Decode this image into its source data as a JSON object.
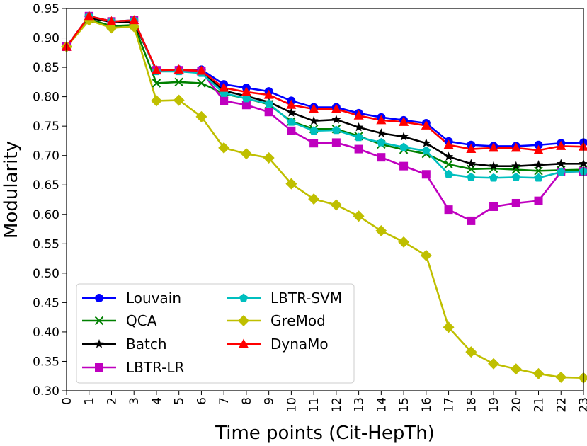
{
  "chart_data": {
    "type": "line",
    "title": "",
    "xlabel": "Time points (Cit-HepTh)",
    "ylabel": "Modularity",
    "xlim": [
      0,
      23
    ],
    "ylim": [
      0.3,
      0.95
    ],
    "x": [
      0,
      1,
      2,
      3,
      4,
      5,
      6,
      7,
      8,
      9,
      10,
      11,
      12,
      13,
      14,
      15,
      16,
      17,
      18,
      19,
      20,
      21,
      22,
      23
    ],
    "xticks": [
      "0",
      "1",
      "2",
      "3",
      "4",
      "5",
      "6",
      "7",
      "8",
      "9",
      "10",
      "11",
      "12",
      "13",
      "14",
      "15",
      "16",
      "17",
      "18",
      "19",
      "20",
      "21",
      "22",
      "23"
    ],
    "yticks": [
      "0.30",
      "0.35",
      "0.40",
      "0.45",
      "0.50",
      "0.55",
      "0.60",
      "0.65",
      "0.70",
      "0.75",
      "0.80",
      "0.85",
      "0.90",
      "0.95"
    ],
    "legend_position": "lower-left",
    "series": [
      {
        "name": "Louvain",
        "color": "#0000ff",
        "marker": "circle",
        "values": [
          0.885,
          0.937,
          0.928,
          0.93,
          0.845,
          0.846,
          0.846,
          0.821,
          0.815,
          0.809,
          0.793,
          0.782,
          0.782,
          0.772,
          0.765,
          0.76,
          0.755,
          0.724,
          0.718,
          0.716,
          0.716,
          0.718,
          0.721,
          0.722
        ]
      },
      {
        "name": "QCA",
        "color": "#008000",
        "marker": "x",
        "values": [
          0.885,
          0.932,
          0.92,
          0.922,
          0.823,
          0.825,
          0.823,
          0.805,
          0.797,
          0.787,
          0.758,
          0.745,
          0.745,
          0.733,
          0.719,
          0.71,
          0.703,
          0.685,
          0.677,
          0.678,
          0.676,
          0.674,
          0.675,
          0.676
        ]
      },
      {
        "name": "Batch",
        "color": "#000000",
        "marker": "star",
        "values": [
          0.885,
          0.934,
          0.927,
          0.926,
          0.845,
          0.844,
          0.843,
          0.81,
          0.801,
          0.791,
          0.773,
          0.759,
          0.761,
          0.748,
          0.738,
          0.732,
          0.721,
          0.698,
          0.686,
          0.682,
          0.682,
          0.684,
          0.686,
          0.686
        ]
      },
      {
        "name": "LBTR-LR",
        "color": "#bf00bf",
        "marker": "square",
        "values": [
          0.885,
          0.937,
          0.928,
          0.93,
          0.845,
          0.845,
          0.843,
          0.793,
          0.786,
          0.774,
          0.742,
          0.721,
          0.722,
          0.711,
          0.697,
          0.682,
          0.668,
          0.608,
          0.589,
          0.613,
          0.619,
          0.623,
          0.672,
          0.673
        ]
      },
      {
        "name": "LBTR-SVM",
        "color": "#00bfbf",
        "marker": "pentagon",
        "values": [
          0.885,
          0.937,
          0.928,
          0.93,
          0.843,
          0.843,
          0.84,
          0.806,
          0.797,
          0.788,
          0.757,
          0.742,
          0.743,
          0.731,
          0.722,
          0.714,
          0.708,
          0.668,
          0.663,
          0.662,
          0.663,
          0.662,
          0.672,
          0.673
        ]
      },
      {
        "name": "GreMod",
        "color": "#bfbf00",
        "marker": "diamond",
        "values": [
          0.885,
          0.93,
          0.917,
          0.919,
          0.793,
          0.794,
          0.766,
          0.713,
          0.703,
          0.696,
          0.652,
          0.626,
          0.616,
          0.597,
          0.572,
          0.553,
          0.53,
          0.408,
          0.366,
          0.346,
          0.337,
          0.329,
          0.323,
          0.322
        ]
      },
      {
        "name": "DynaMo",
        "color": "#ff0000",
        "marker": "triangle",
        "values": [
          0.885,
          0.937,
          0.928,
          0.93,
          0.845,
          0.846,
          0.844,
          0.815,
          0.808,
          0.803,
          0.786,
          0.779,
          0.779,
          0.768,
          0.76,
          0.757,
          0.751,
          0.718,
          0.711,
          0.713,
          0.713,
          0.709,
          0.716,
          0.715
        ]
      }
    ]
  }
}
